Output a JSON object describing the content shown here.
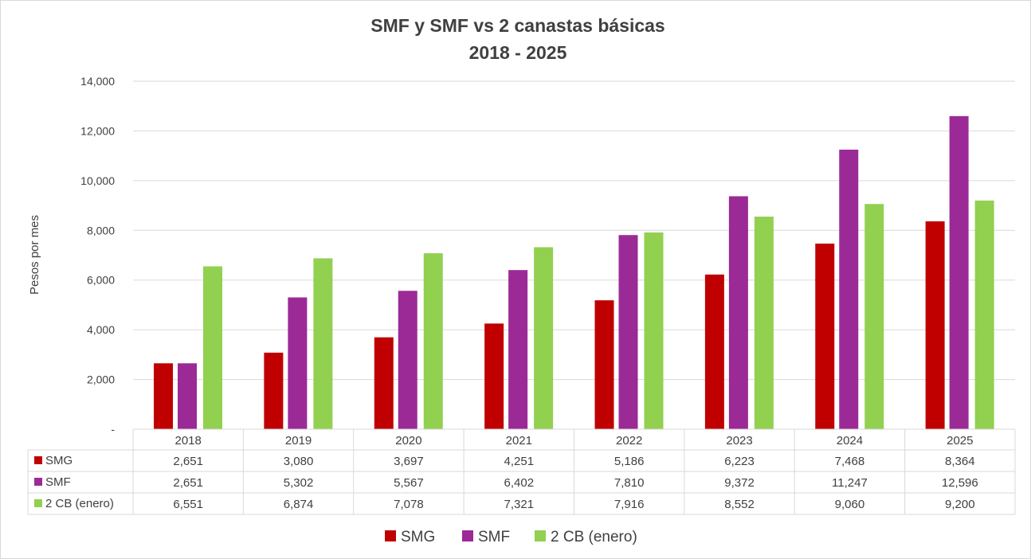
{
  "chart_data": {
    "type": "bar",
    "title": "SMF y SMF vs 2 canastas básicas",
    "subtitle": "2018 - 2025",
    "ylabel": "Pesos por mes",
    "xlabel": "",
    "ylim": [
      0,
      14000
    ],
    "yticks": [
      0,
      2000,
      4000,
      6000,
      8000,
      10000,
      12000,
      14000
    ],
    "ytick_labels": [
      "-",
      "2,000",
      "4,000",
      "6,000",
      "8,000",
      "10,000",
      "12,000",
      "14,000"
    ],
    "grid": true,
    "legend_placement": "bottom",
    "data_table": true,
    "categories": [
      "2018",
      "2019",
      "2020",
      "2021",
      "2022",
      "2023",
      "2024",
      "2025"
    ],
    "series": [
      {
        "name": "SMG",
        "color": "#C00000",
        "values": [
          2651,
          3080,
          3697,
          4251,
          5186,
          6223,
          7468,
          8364
        ]
      },
      {
        "name": "SMF",
        "color": "#9B2A96",
        "values": [
          2651,
          5302,
          5567,
          6402,
          7810,
          9372,
          11247,
          12596
        ]
      },
      {
        "name": "2 CB (enero)",
        "color": "#92D050",
        "values": [
          6551,
          6874,
          7078,
          7321,
          7916,
          8552,
          9060,
          9200
        ]
      }
    ]
  }
}
